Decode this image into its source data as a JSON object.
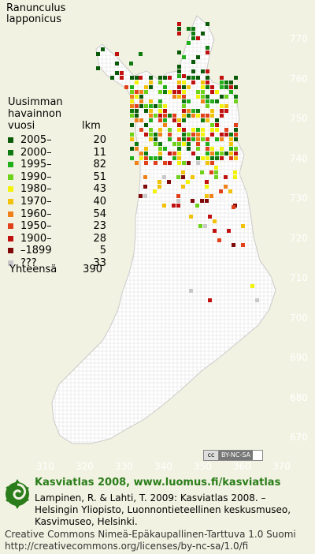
{
  "species": [
    "Ranunculus",
    "lapponicus"
  ],
  "legend_title": [
    "Uusimman",
    "havainnon",
    "vuosi"
  ],
  "count_header": "lkm",
  "legend": [
    {
      "label": "2005–",
      "count": "20",
      "color": "#0a5a0a"
    },
    {
      "label": "2000–",
      "count": "11",
      "color": "#0f7a10"
    },
    {
      "label": "1995–",
      "count": "82",
      "color": "#22b01a"
    },
    {
      "label": "1990–",
      "count": "51",
      "color": "#6ed21a"
    },
    {
      "label": "1980–",
      "count": "43",
      "color": "#f2f20a"
    },
    {
      "label": "1970–",
      "count": "40",
      "color": "#f2c20a"
    },
    {
      "label": "1960–",
      "count": "54",
      "color": "#f0801a"
    },
    {
      "label": "1950–",
      "count": "23",
      "color": "#e0401a"
    },
    {
      "label": "1900–",
      "count": "28",
      "color": "#c01010"
    },
    {
      "label": "–1899",
      "count": "5",
      "color": "#800808"
    },
    {
      "label": "???",
      "count": "33",
      "color": "#c8c8c8"
    }
  ],
  "total": {
    "label": "Yhteensä",
    "count": "390"
  },
  "y_ticks": [
    "770",
    "760",
    "750",
    "740",
    "730",
    "720",
    "710",
    "700",
    "690",
    "680",
    "670"
  ],
  "x_ticks": [
    "310",
    "320",
    "330",
    "340",
    "350",
    "360",
    "370"
  ],
  "cc_badge": {
    "cc": "cc",
    "license": "BY-NC-SA"
  },
  "footer": {
    "title": "Kasviatlas 2008, www.luomus.fi/kasviatlas",
    "citation": "Lampinen, R. & Lahti, T. 2009: Kasviatlas 2008. – Helsingin Yliopisto, Luonnontieteellinen keskusmuseo, Kasvimuseo, Helsinki.",
    "license_line1": "Creative Commons Nimeä-Epäkaupallinen-Tarttuva 1.0 Suomi",
    "license_line2": "http://creativecommons.org/licenses/by-nc-sa/1.0/fi"
  },
  "colors": {
    "background": "#f2f2e2",
    "land": "#ffffff",
    "grid": "#dedede",
    "footer_green": "#2a7d1a"
  }
}
